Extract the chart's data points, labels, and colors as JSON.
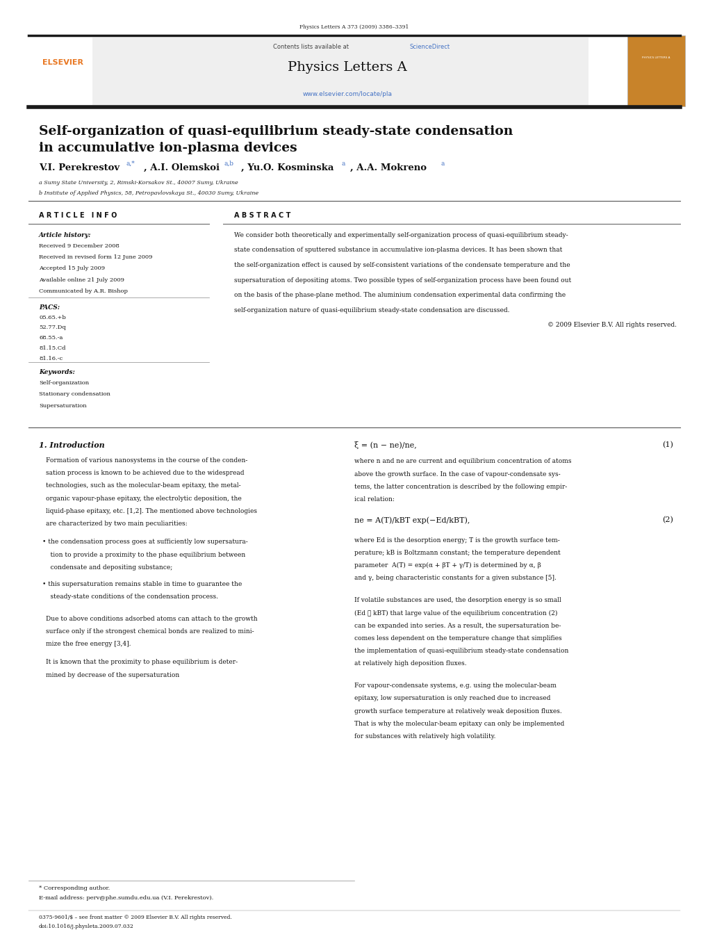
{
  "page_width": 10.2,
  "page_height": 13.51,
  "bg_color": "#ffffff",
  "journal_ref": "Physics Letters A 373 (2009) 3386–3391",
  "header_bg": "#f0f0f0",
  "header_contents": "Contents lists available at ScienceDirect",
  "header_journal": "Physics Letters A",
  "header_url": "www.elsevier.com/locate/pla",
  "sciencedirect_color": "#4472c4",
  "elsevier_orange": "#e87722",
  "thick_bar_color": "#1a1a1a",
  "paper_title_line1": "Self-organization of quasi-equilibrium steady-state condensation",
  "paper_title_line2": "in accumulative ion-plasma devices",
  "affil_a": "a Sumy State University, 2, Rimski-Korsakov St., 40007 Sumy, Ukraine",
  "affil_b": "b Institute of Applied Physics, 58, Petropavlovskaya St., 40030 Sumy, Ukraine",
  "article_info_label": "A R T I C L E   I N F O",
  "abstract_label": "A B S T R A C T",
  "article_history_label": "Article history:",
  "received1": "Received 9 December 2008",
  "received2": "Received in revised form 12 June 2009",
  "accepted": "Accepted 15 July 2009",
  "available": "Available online 21 July 2009",
  "communicated": "Communicated by A.R. Bishop",
  "pacs_label": "PACS:",
  "pacs1": "05.65.+b",
  "pacs2": "52.77.Dq",
  "pacs3": "68.55.-a",
  "pacs4": "81.15.Cd",
  "pacs5": "81.16.-c",
  "keywords_label": "Keywords:",
  "kw1": "Self-organization",
  "kw2": "Stationary condensation",
  "kw3": "Supersaturation",
  "abstract_text_lines": [
    "We consider both theoretically and experimentally self-organization process of quasi-equilibrium steady-",
    "state condensation of sputtered substance in accumulative ion-plasma devices. It has been shown that",
    "the self-organization effect is caused by self-consistent variations of the condensate temperature and the",
    "supersaturation of depositing atoms. Two possible types of self-organization process have been found out",
    "on the basis of the phase-plane method. The aluminium condensation experimental data confirming the",
    "self-organization nature of quasi-equilibrium steady-state condensation are discussed."
  ],
  "copyright": "© 2009 Elsevier B.V. All rights reserved.",
  "section1_label": "1. Introduction",
  "intro_text1_lines": [
    "Formation of various nanosystems in the course of the conden-",
    "sation process is known to be achieved due to the widespread",
    "technologies, such as the molecular-beam epitaxy, the metal-",
    "organic vapour-phase epitaxy, the electrolytic deposition, the",
    "liquid-phase epitaxy, etc. [1,2]. The mentioned above technologies",
    "are characterized by two main peculiarities:"
  ],
  "bullet1_lines": [
    "the condensation process goes at sufficiently low supersatura-",
    "tion to provide a proximity to the phase equilibrium between",
    "condensate and depositing substance;"
  ],
  "bullet2_lines": [
    "this supersaturation remains stable in time to guarantee the",
    "steady-state conditions of the condensation process."
  ],
  "intro_text2_lines": [
    "Due to above conditions adsorbed atoms can attach to the growth",
    "surface only if the strongest chemical bonds are realized to mini-",
    "mize the free energy [3,4]."
  ],
  "intro_text3_lines": [
    "It is known that the proximity to phase equilibrium is deter-",
    "mined by decrease of the supersaturation"
  ],
  "eq1": "ξ = (n − ne)/ne,",
  "eq1_num": "(1)",
  "eq2_desc_lines": [
    "where n and ne are current and equilibrium concentration of atoms",
    "above the growth surface. In the case of vapour-condensate sys-",
    "tems, the latter concentration is described by the following empir-",
    "ical relation:"
  ],
  "eq2": "ne = A(T)/kBT exp(−Ed/kBT),",
  "eq2_num": "(2)",
  "eq2_text_lines": [
    "where Ed is the desorption energy; T is the growth surface tem-",
    "perature; kB is Boltzmann constant; the temperature dependent",
    "parameter  A(T) = exp(α + βT + γ/T) is determined by α, β",
    "and γ, being characteristic constants for a given substance [5]."
  ],
  "volatile_text_lines": [
    "If volatile substances are used, the desorption energy is so small",
    "(Ed ≪ kBT) that large value of the equilibrium concentration (2)",
    "can be expanded into series. As a result, the supersaturation be-",
    "comes less dependent on the temperature change that simplifies",
    "the implementation of quasi-equilibrium steady-state condensation",
    "at relatively high deposition fluxes."
  ],
  "vapour_text_lines": [
    "For vapour-condensate systems, e.g. using the molecular-beam",
    "epitaxy, low supersaturation is only reached due to increased",
    "growth surface temperature at relatively weak deposition fluxes.",
    "That is why the molecular-beam epitaxy can only be implemented",
    "for substances with relatively high volatility."
  ],
  "footnote_star": "* Corresponding author.",
  "footnote_email": "E-mail address: perv@phe.sumdu.edu.ua (V.I. Perekrestov).",
  "footer_issn": "0375-9601/$ – see front matter © 2009 Elsevier B.V. All rights reserved.",
  "footer_doi": "doi:10.1016/j.physleta.2009.07.032"
}
